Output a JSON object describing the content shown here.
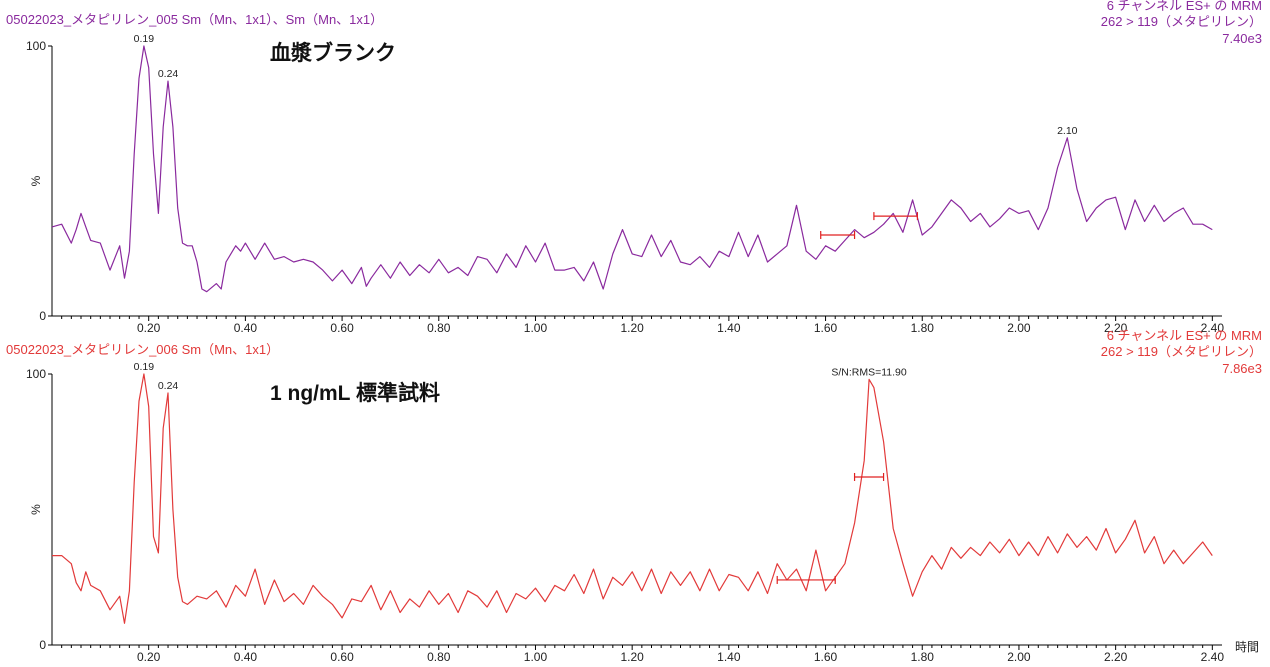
{
  "axis": {
    "time_label": "時間",
    "y_max_label": "100",
    "y_min_label": "0",
    "y_unit_label": "%",
    "x_ticks": [
      "0.20",
      "0.40",
      "0.60",
      "0.80",
      "1.00",
      "1.20",
      "1.40",
      "1.60",
      "1.80",
      "2.00",
      "2.20",
      "2.40"
    ]
  },
  "chart_data": [
    {
      "type": "line",
      "color": "#8a2a9e",
      "header_left": "05022023_メタピリレン_005 Sm（Mn、1x1）、Sm（Mn、1x1）",
      "header_right_1": "6 チャンネル ES+ の MRM",
      "header_right_2": "262 > 119（メタピリレン）",
      "header_right_3": "7.40e3",
      "overlay_label": "血漿ブランク",
      "xlim": [
        0.0,
        2.42
      ],
      "ylim": [
        0,
        100
      ],
      "ylabel": "%",
      "xlabel": "時間",
      "peak_labels": [
        {
          "text": "0.19",
          "x": 0.19,
          "y": 100
        },
        {
          "text": "0.24",
          "x": 0.24,
          "y": 87
        },
        {
          "text": "2.10",
          "x": 2.1,
          "y": 66
        }
      ],
      "noise_markers": [
        {
          "x1": 1.59,
          "x2": 1.66,
          "y": 30
        },
        {
          "x1": 1.7,
          "x2": 1.79,
          "y": 37
        }
      ],
      "points": [
        [
          0.0,
          33
        ],
        [
          0.02,
          34
        ],
        [
          0.04,
          27
        ],
        [
          0.05,
          32
        ],
        [
          0.06,
          38
        ],
        [
          0.07,
          33
        ],
        [
          0.08,
          28
        ],
        [
          0.1,
          27
        ],
        [
          0.12,
          17
        ],
        [
          0.14,
          26
        ],
        [
          0.15,
          14
        ],
        [
          0.16,
          24
        ],
        [
          0.17,
          60
        ],
        [
          0.18,
          88
        ],
        [
          0.19,
          100
        ],
        [
          0.2,
          92
        ],
        [
          0.21,
          60
        ],
        [
          0.22,
          38
        ],
        [
          0.23,
          70
        ],
        [
          0.24,
          87
        ],
        [
          0.25,
          70
        ],
        [
          0.26,
          40
        ],
        [
          0.27,
          27
        ],
        [
          0.28,
          26
        ],
        [
          0.29,
          26
        ],
        [
          0.3,
          20
        ],
        [
          0.31,
          10
        ],
        [
          0.32,
          9
        ],
        [
          0.34,
          12
        ],
        [
          0.35,
          10
        ],
        [
          0.36,
          20
        ],
        [
          0.38,
          26
        ],
        [
          0.39,
          24
        ],
        [
          0.4,
          27
        ],
        [
          0.42,
          21
        ],
        [
          0.44,
          27
        ],
        [
          0.46,
          21
        ],
        [
          0.48,
          22
        ],
        [
          0.5,
          20
        ],
        [
          0.52,
          21
        ],
        [
          0.54,
          20
        ],
        [
          0.56,
          17
        ],
        [
          0.58,
          13
        ],
        [
          0.6,
          17
        ],
        [
          0.62,
          12
        ],
        [
          0.64,
          18
        ],
        [
          0.65,
          11
        ],
        [
          0.66,
          14
        ],
        [
          0.68,
          19
        ],
        [
          0.7,
          14
        ],
        [
          0.72,
          20
        ],
        [
          0.74,
          15
        ],
        [
          0.76,
          19
        ],
        [
          0.78,
          16
        ],
        [
          0.8,
          21
        ],
        [
          0.82,
          16
        ],
        [
          0.84,
          18
        ],
        [
          0.86,
          15
        ],
        [
          0.88,
          22
        ],
        [
          0.9,
          21
        ],
        [
          0.92,
          16
        ],
        [
          0.94,
          23
        ],
        [
          0.96,
          18
        ],
        [
          0.98,
          26
        ],
        [
          1.0,
          20
        ],
        [
          1.02,
          27
        ],
        [
          1.04,
          17
        ],
        [
          1.06,
          17
        ],
        [
          1.08,
          18
        ],
        [
          1.1,
          13
        ],
        [
          1.12,
          20
        ],
        [
          1.14,
          10
        ],
        [
          1.16,
          23
        ],
        [
          1.18,
          32
        ],
        [
          1.2,
          23
        ],
        [
          1.22,
          22
        ],
        [
          1.24,
          30
        ],
        [
          1.26,
          22
        ],
        [
          1.28,
          28
        ],
        [
          1.3,
          20
        ],
        [
          1.32,
          19
        ],
        [
          1.34,
          22
        ],
        [
          1.36,
          18
        ],
        [
          1.38,
          24
        ],
        [
          1.4,
          22
        ],
        [
          1.42,
          31
        ],
        [
          1.44,
          22
        ],
        [
          1.46,
          30
        ],
        [
          1.48,
          20
        ],
        [
          1.5,
          23
        ],
        [
          1.52,
          26
        ],
        [
          1.54,
          41
        ],
        [
          1.56,
          24
        ],
        [
          1.58,
          21
        ],
        [
          1.6,
          26
        ],
        [
          1.62,
          24
        ],
        [
          1.64,
          28
        ],
        [
          1.66,
          32
        ],
        [
          1.68,
          29
        ],
        [
          1.7,
          31
        ],
        [
          1.72,
          34
        ],
        [
          1.74,
          38
        ],
        [
          1.76,
          31
        ],
        [
          1.78,
          43
        ],
        [
          1.8,
          30
        ],
        [
          1.82,
          33
        ],
        [
          1.84,
          38
        ],
        [
          1.86,
          43
        ],
        [
          1.88,
          40
        ],
        [
          1.9,
          35
        ],
        [
          1.92,
          38
        ],
        [
          1.94,
          33
        ],
        [
          1.96,
          36
        ],
        [
          1.98,
          40
        ],
        [
          2.0,
          38
        ],
        [
          2.02,
          39
        ],
        [
          2.04,
          32
        ],
        [
          2.06,
          40
        ],
        [
          2.08,
          55
        ],
        [
          2.1,
          66
        ],
        [
          2.12,
          47
        ],
        [
          2.14,
          35
        ],
        [
          2.16,
          40
        ],
        [
          2.18,
          43
        ],
        [
          2.2,
          44
        ],
        [
          2.22,
          32
        ],
        [
          2.24,
          43
        ],
        [
          2.26,
          35
        ],
        [
          2.28,
          41
        ],
        [
          2.3,
          35
        ],
        [
          2.32,
          38
        ],
        [
          2.34,
          40
        ],
        [
          2.36,
          34
        ],
        [
          2.38,
          34
        ],
        [
          2.4,
          32
        ]
      ]
    },
    {
      "type": "line",
      "color": "#e23a3a",
      "header_left": "05022023_メタピリレン_006 Sm（Mn、1x1）",
      "header_right_1": "6 チャンネル ES+ の MRM",
      "header_right_2": "262 > 119（メタピリレン）",
      "header_right_3": "7.86e3",
      "overlay_label": "1 ng/mL 標準試料",
      "xlim": [
        0.0,
        2.42
      ],
      "ylim": [
        0,
        100
      ],
      "ylabel": "%",
      "xlabel": "時間",
      "peak_labels": [
        {
          "text": "0.19",
          "x": 0.19,
          "y": 100
        },
        {
          "text": "0.24",
          "x": 0.24,
          "y": 93
        },
        {
          "text": "S/N:RMS=11.90",
          "x": 1.69,
          "y": 98
        }
      ],
      "noise_markers": [
        {
          "x1": 1.66,
          "x2": 1.72,
          "y": 62
        },
        {
          "x1": 1.5,
          "x2": 1.62,
          "y": 24
        }
      ],
      "points": [
        [
          0.0,
          33
        ],
        [
          0.02,
          33
        ],
        [
          0.04,
          30
        ],
        [
          0.05,
          23
        ],
        [
          0.06,
          20
        ],
        [
          0.07,
          27
        ],
        [
          0.08,
          22
        ],
        [
          0.1,
          20
        ],
        [
          0.12,
          13
        ],
        [
          0.14,
          18
        ],
        [
          0.15,
          8
        ],
        [
          0.16,
          20
        ],
        [
          0.17,
          60
        ],
        [
          0.18,
          90
        ],
        [
          0.19,
          100
        ],
        [
          0.2,
          88
        ],
        [
          0.21,
          40
        ],
        [
          0.22,
          34
        ],
        [
          0.23,
          80
        ],
        [
          0.24,
          93
        ],
        [
          0.25,
          50
        ],
        [
          0.26,
          25
        ],
        [
          0.27,
          16
        ],
        [
          0.28,
          15
        ],
        [
          0.3,
          18
        ],
        [
          0.32,
          17
        ],
        [
          0.34,
          20
        ],
        [
          0.36,
          14
        ],
        [
          0.38,
          22
        ],
        [
          0.4,
          18
        ],
        [
          0.42,
          28
        ],
        [
          0.44,
          15
        ],
        [
          0.46,
          24
        ],
        [
          0.48,
          16
        ],
        [
          0.5,
          19
        ],
        [
          0.52,
          15
        ],
        [
          0.54,
          22
        ],
        [
          0.56,
          18
        ],
        [
          0.58,
          15
        ],
        [
          0.6,
          10
        ],
        [
          0.62,
          17
        ],
        [
          0.64,
          16
        ],
        [
          0.66,
          22
        ],
        [
          0.68,
          13
        ],
        [
          0.7,
          20
        ],
        [
          0.72,
          12
        ],
        [
          0.74,
          17
        ],
        [
          0.76,
          14
        ],
        [
          0.78,
          20
        ],
        [
          0.8,
          15
        ],
        [
          0.82,
          19
        ],
        [
          0.84,
          12
        ],
        [
          0.86,
          20
        ],
        [
          0.88,
          18
        ],
        [
          0.9,
          14
        ],
        [
          0.92,
          20
        ],
        [
          0.94,
          12
        ],
        [
          0.96,
          19
        ],
        [
          0.98,
          17
        ],
        [
          1.0,
          21
        ],
        [
          1.02,
          16
        ],
        [
          1.04,
          22
        ],
        [
          1.06,
          20
        ],
        [
          1.08,
          26
        ],
        [
          1.1,
          19
        ],
        [
          1.12,
          28
        ],
        [
          1.14,
          17
        ],
        [
          1.16,
          25
        ],
        [
          1.18,
          22
        ],
        [
          1.2,
          27
        ],
        [
          1.22,
          20
        ],
        [
          1.24,
          28
        ],
        [
          1.26,
          19
        ],
        [
          1.28,
          27
        ],
        [
          1.3,
          22
        ],
        [
          1.32,
          27
        ],
        [
          1.34,
          20
        ],
        [
          1.36,
          28
        ],
        [
          1.38,
          20
        ],
        [
          1.4,
          26
        ],
        [
          1.42,
          25
        ],
        [
          1.44,
          20
        ],
        [
          1.46,
          27
        ],
        [
          1.48,
          19
        ],
        [
          1.5,
          30
        ],
        [
          1.52,
          24
        ],
        [
          1.54,
          28
        ],
        [
          1.56,
          20
        ],
        [
          1.58,
          35
        ],
        [
          1.6,
          20
        ],
        [
          1.62,
          25
        ],
        [
          1.64,
          30
        ],
        [
          1.66,
          45
        ],
        [
          1.68,
          68
        ],
        [
          1.69,
          98
        ],
        [
          1.7,
          95
        ],
        [
          1.72,
          75
        ],
        [
          1.74,
          43
        ],
        [
          1.76,
          30
        ],
        [
          1.78,
          18
        ],
        [
          1.8,
          27
        ],
        [
          1.82,
          33
        ],
        [
          1.84,
          28
        ],
        [
          1.86,
          36
        ],
        [
          1.88,
          32
        ],
        [
          1.9,
          36
        ],
        [
          1.92,
          33
        ],
        [
          1.94,
          38
        ],
        [
          1.96,
          34
        ],
        [
          1.98,
          39
        ],
        [
          2.0,
          33
        ],
        [
          2.02,
          38
        ],
        [
          2.04,
          33
        ],
        [
          2.06,
          40
        ],
        [
          2.08,
          34
        ],
        [
          2.1,
          41
        ],
        [
          2.12,
          36
        ],
        [
          2.14,
          40
        ],
        [
          2.16,
          35
        ],
        [
          2.18,
          43
        ],
        [
          2.2,
          34
        ],
        [
          2.22,
          39
        ],
        [
          2.24,
          46
        ],
        [
          2.26,
          34
        ],
        [
          2.28,
          40
        ],
        [
          2.3,
          30
        ],
        [
          2.32,
          35
        ],
        [
          2.34,
          30
        ],
        [
          2.36,
          34
        ],
        [
          2.38,
          38
        ],
        [
          2.4,
          33
        ]
      ]
    }
  ]
}
